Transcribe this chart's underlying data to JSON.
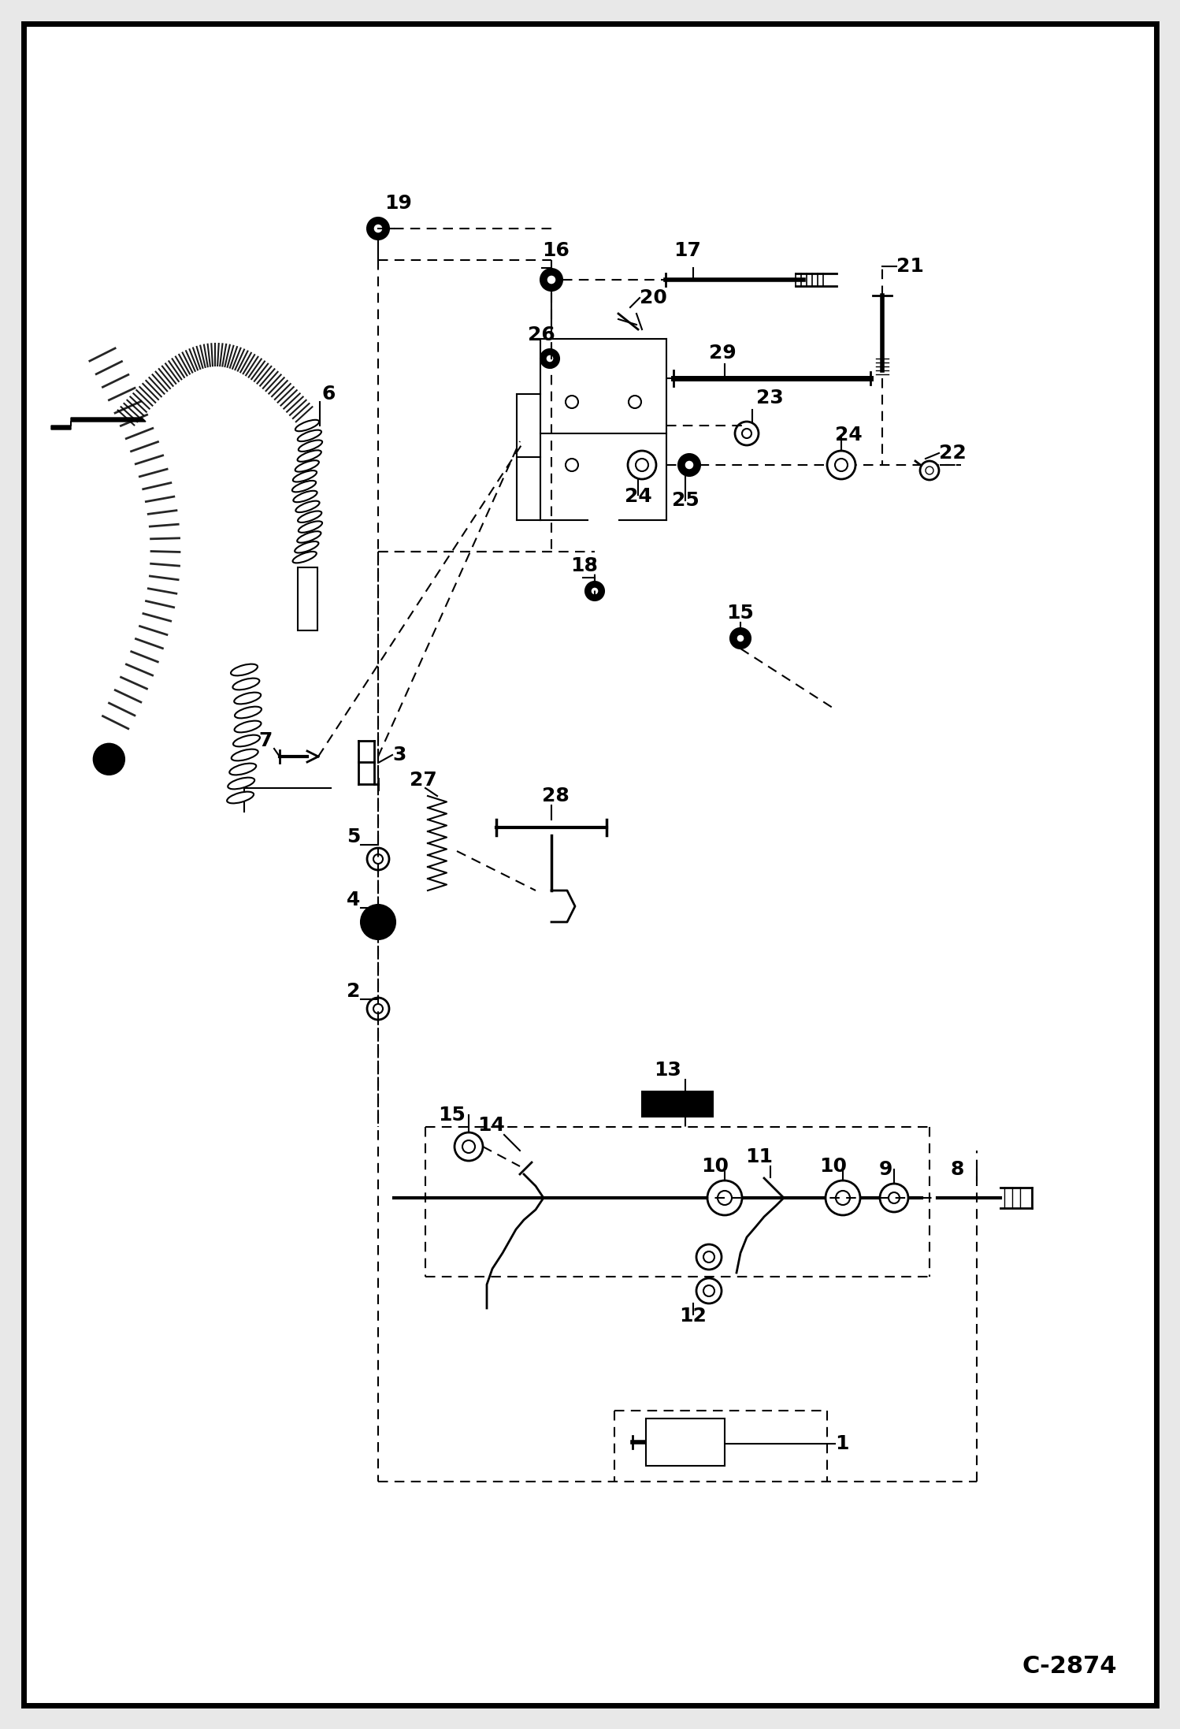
{
  "bg_color": "#e8e8e8",
  "page_color": "#ffffff",
  "border_color": "#000000",
  "page_code": "C-2874",
  "figsize": [
    14.98,
    21.94
  ],
  "dpi": 100,
  "xlim": [
    0,
    1498
  ],
  "ylim": [
    0,
    2194
  ]
}
